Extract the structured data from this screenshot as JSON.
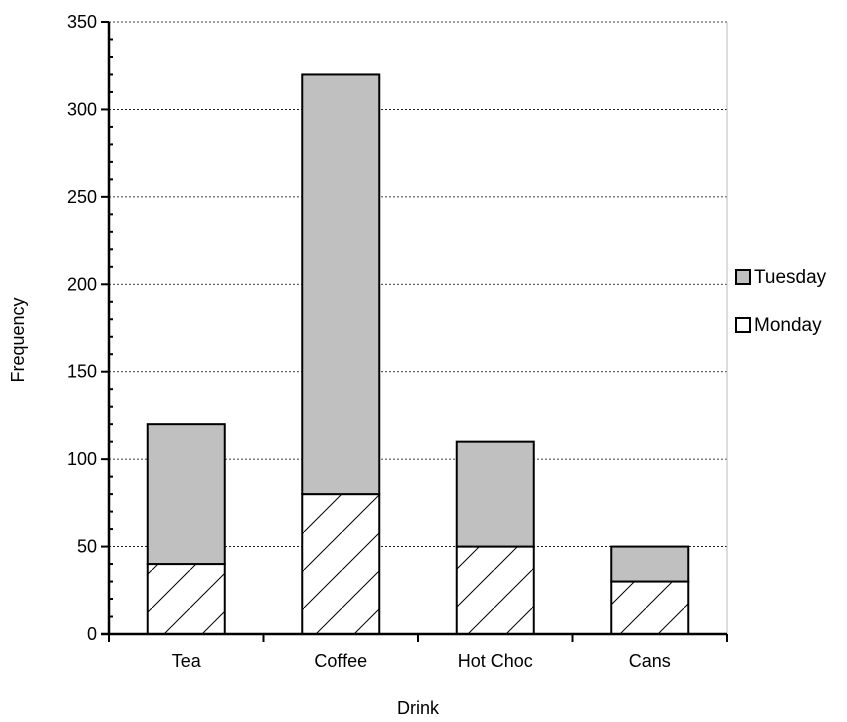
{
  "chart_data": {
    "type": "bar",
    "stacked": true,
    "title": "",
    "xlabel": "Drink",
    "ylabel": "Frequency",
    "categories": [
      "Tea",
      "Coffee",
      "Hot Choc",
      "Cans"
    ],
    "series": [
      {
        "name": "Monday",
        "values": [
          40,
          80,
          50,
          30
        ],
        "fill": "hatched",
        "color": "#ffffff"
      },
      {
        "name": "Tuesday",
        "values": [
          80,
          240,
          60,
          20
        ],
        "fill": "solid",
        "color": "#c0c0c0"
      }
    ],
    "ylim": [
      0,
      350
    ],
    "yticks": [
      0,
      50,
      100,
      150,
      200,
      250,
      300,
      350
    ],
    "grid": "horizontal-dotted",
    "legend": {
      "placement": "right",
      "order": [
        "Tuesday",
        "Monday"
      ]
    }
  }
}
